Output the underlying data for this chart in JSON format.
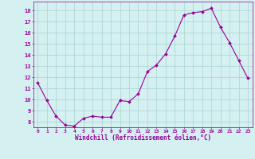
{
  "x": [
    0,
    1,
    2,
    3,
    4,
    5,
    6,
    7,
    8,
    9,
    10,
    11,
    12,
    13,
    14,
    15,
    16,
    17,
    18,
    19,
    20,
    21,
    22,
    23
  ],
  "y": [
    11.5,
    9.9,
    8.5,
    7.7,
    7.6,
    8.3,
    8.5,
    8.4,
    8.4,
    9.9,
    9.8,
    10.5,
    12.5,
    13.1,
    14.1,
    15.7,
    17.6,
    17.8,
    17.9,
    18.2,
    16.5,
    15.1,
    13.5,
    11.9
  ],
  "line_color": "#990099",
  "marker": "D",
  "marker_size": 2.0,
  "bg_color": "#d4f0f0",
  "grid_color": "#b0d8d8",
  "xlabel": "Windchill (Refroidissement éolien,°C)",
  "xlabel_color": "#990099",
  "tick_color": "#990099",
  "ylim": [
    7.5,
    18.8
  ],
  "yticks": [
    8,
    9,
    10,
    11,
    12,
    13,
    14,
    15,
    16,
    17,
    18
  ],
  "xlim": [
    -0.5,
    23.5
  ],
  "xticks": [
    0,
    1,
    2,
    3,
    4,
    5,
    6,
    7,
    8,
    9,
    10,
    11,
    12,
    13,
    14,
    15,
    16,
    17,
    18,
    19,
    20,
    21,
    22,
    23
  ]
}
